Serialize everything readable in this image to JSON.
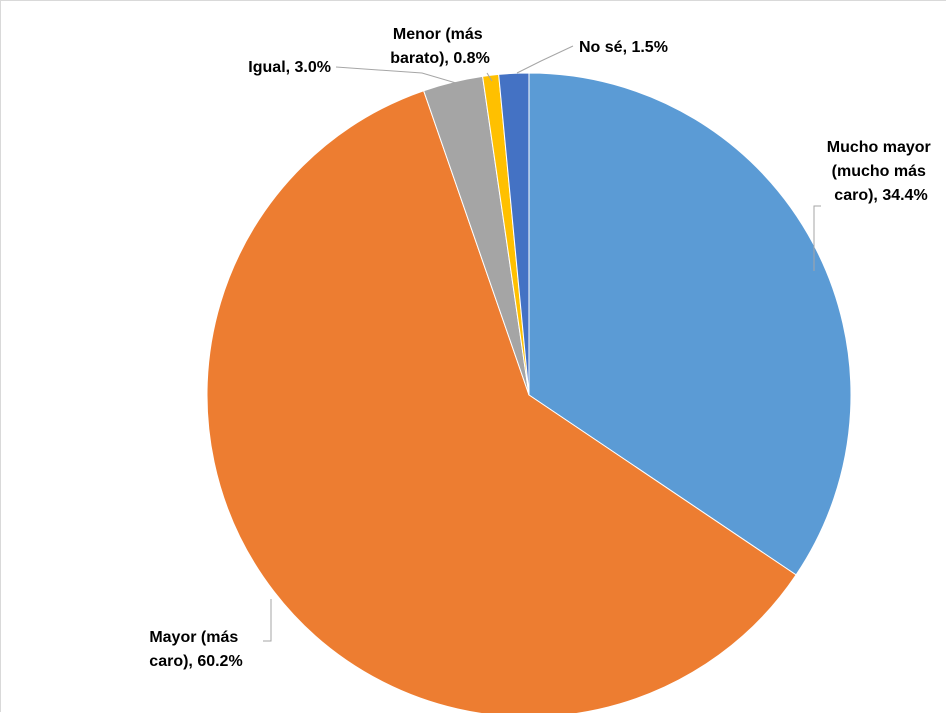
{
  "chart_data": {
    "type": "pie",
    "start": "12 o'clock",
    "direction": "clockwise",
    "slices": [
      {
        "name": "Mucho mayor (mucho más caro)",
        "value": 34.4,
        "color": "#5b9bd5",
        "label_lines": [
          "Mucho mayor",
          "(mucho más",
          "caro), 34.4%"
        ]
      },
      {
        "name": "Mayor (más caro)",
        "value": 60.2,
        "color": "#ed7d31",
        "label_lines": [
          "Mayor (más",
          "caro), 60.2%"
        ]
      },
      {
        "name": "Igual",
        "value": 3.0,
        "color": "#a5a5a5",
        "label_lines": [
          "Igual, 3.0%"
        ]
      },
      {
        "name": "Menor (más barato)",
        "value": 0.8,
        "color": "#ffc000",
        "label_lines": [
          "Menor (más",
          "barato), 0.8%"
        ]
      },
      {
        "name": "No sé",
        "value": 1.5,
        "color": "#4472c4",
        "label_lines": [
          "No sé, 1.5%"
        ]
      }
    ]
  }
}
